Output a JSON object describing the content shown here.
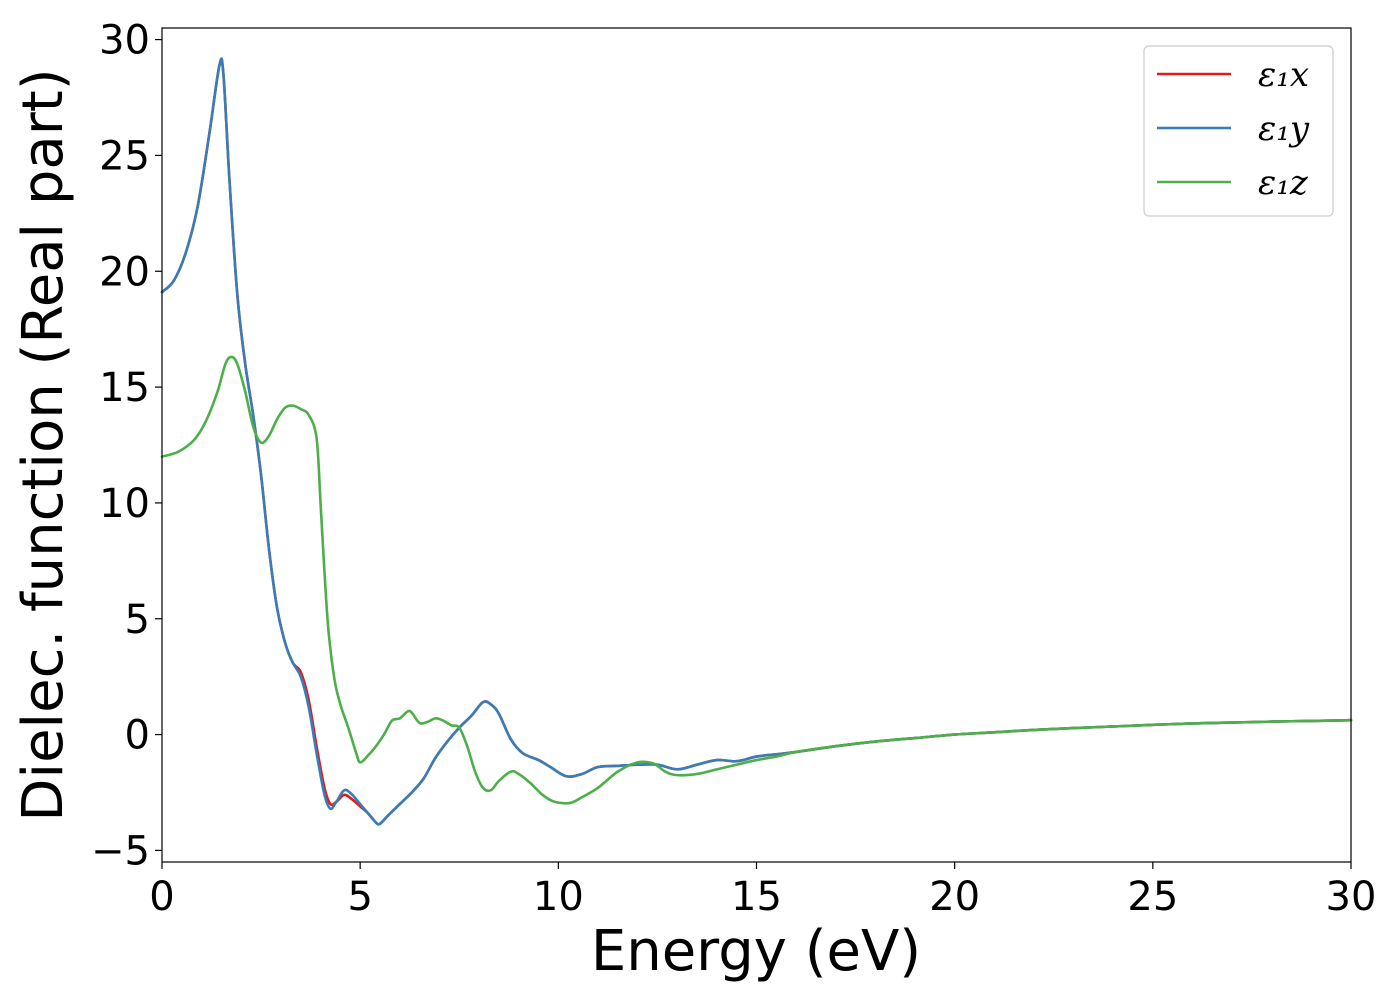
{
  "chart_data": {
    "type": "line",
    "title": "",
    "xlabel": "Energy (eV)",
    "ylabel": "Dielec. function (Real part)",
    "xlim": [
      0,
      30
    ],
    "ylim": [
      -5.5,
      30.5
    ],
    "xticks": [
      0,
      5,
      10,
      15,
      20,
      25,
      30
    ],
    "xtick_labels": [
      "0",
      "5",
      "10",
      "15",
      "20",
      "25",
      "30"
    ],
    "yticks": [
      -5,
      0,
      5,
      10,
      15,
      20,
      25,
      30
    ],
    "ytick_labels": [
      "−5",
      "0",
      "5",
      "10",
      "15",
      "20",
      "25",
      "30"
    ],
    "grid": false,
    "legend_position": "top-right",
    "series": [
      {
        "name": "ε₁x",
        "color": "#e41a1c",
        "points": [
          [
            0,
            19.1
          ],
          [
            0.3,
            19.6
          ],
          [
            0.6,
            20.8
          ],
          [
            0.9,
            22.8
          ],
          [
            1.2,
            26.0
          ],
          [
            1.45,
            28.9
          ],
          [
            1.55,
            28.5
          ],
          [
            1.7,
            24.0
          ],
          [
            1.9,
            19.0
          ],
          [
            2.1,
            16.0
          ],
          [
            2.3,
            13.8
          ],
          [
            2.5,
            11.2
          ],
          [
            2.7,
            8.0
          ],
          [
            2.9,
            5.5
          ],
          [
            3.1,
            4.0
          ],
          [
            3.3,
            3.1
          ],
          [
            3.5,
            2.7
          ],
          [
            3.7,
            1.5
          ],
          [
            3.9,
            -0.5
          ],
          [
            4.1,
            -2.3
          ],
          [
            4.25,
            -3.0
          ],
          [
            4.4,
            -2.9
          ],
          [
            4.6,
            -2.6
          ],
          [
            4.8,
            -2.8
          ],
          [
            5.0,
            -3.1
          ],
          [
            5.2,
            -3.4
          ],
          [
            5.4,
            -3.8
          ],
          [
            5.5,
            -3.85
          ],
          [
            5.7,
            -3.5
          ],
          [
            6.0,
            -3.0
          ],
          [
            6.3,
            -2.5
          ],
          [
            6.6,
            -1.9
          ],
          [
            6.9,
            -1.0
          ],
          [
            7.2,
            -0.3
          ],
          [
            7.5,
            0.3
          ],
          [
            7.8,
            0.8
          ],
          [
            8.1,
            1.4
          ],
          [
            8.3,
            1.3
          ],
          [
            8.5,
            0.9
          ],
          [
            8.8,
            -0.2
          ],
          [
            9.1,
            -0.8
          ],
          [
            9.5,
            -1.1
          ],
          [
            9.8,
            -1.4
          ],
          [
            10.2,
            -1.8
          ],
          [
            10.6,
            -1.7
          ],
          [
            11.0,
            -1.4
          ],
          [
            11.5,
            -1.35
          ],
          [
            12.0,
            -1.3
          ],
          [
            12.5,
            -1.3
          ],
          [
            13.0,
            -1.5
          ],
          [
            13.5,
            -1.3
          ],
          [
            14.0,
            -1.1
          ],
          [
            14.5,
            -1.15
          ],
          [
            15.0,
            -0.95
          ],
          [
            15.5,
            -0.85
          ],
          [
            16.0,
            -0.75
          ],
          [
            17.0,
            -0.5
          ],
          [
            18.0,
            -0.3
          ],
          [
            19.0,
            -0.15
          ],
          [
            20.0,
            0.0
          ],
          [
            21.0,
            0.1
          ],
          [
            22.0,
            0.2
          ],
          [
            23.0,
            0.28
          ],
          [
            24.0,
            0.35
          ],
          [
            25.0,
            0.42
          ],
          [
            26.0,
            0.48
          ],
          [
            27.0,
            0.52
          ],
          [
            28.0,
            0.56
          ],
          [
            29.0,
            0.59
          ],
          [
            30.0,
            0.62
          ]
        ]
      },
      {
        "name": "ε₁y",
        "color": "#377eb8",
        "points": [
          [
            0,
            19.1
          ],
          [
            0.3,
            19.6
          ],
          [
            0.6,
            20.8
          ],
          [
            0.9,
            22.8
          ],
          [
            1.2,
            26.0
          ],
          [
            1.45,
            28.9
          ],
          [
            1.55,
            28.5
          ],
          [
            1.7,
            24.0
          ],
          [
            1.9,
            19.0
          ],
          [
            2.1,
            16.0
          ],
          [
            2.3,
            13.8
          ],
          [
            2.5,
            11.2
          ],
          [
            2.7,
            8.0
          ],
          [
            2.9,
            5.5
          ],
          [
            3.1,
            4.0
          ],
          [
            3.3,
            3.1
          ],
          [
            3.5,
            2.5
          ],
          [
            3.7,
            1.2
          ],
          [
            3.9,
            -0.8
          ],
          [
            4.1,
            -2.6
          ],
          [
            4.25,
            -3.2
          ],
          [
            4.4,
            -2.9
          ],
          [
            4.6,
            -2.4
          ],
          [
            4.8,
            -2.6
          ],
          [
            5.0,
            -3.0
          ],
          [
            5.2,
            -3.4
          ],
          [
            5.4,
            -3.8
          ],
          [
            5.5,
            -3.85
          ],
          [
            5.7,
            -3.5
          ],
          [
            6.0,
            -3.0
          ],
          [
            6.3,
            -2.5
          ],
          [
            6.6,
            -1.9
          ],
          [
            6.9,
            -1.0
          ],
          [
            7.2,
            -0.3
          ],
          [
            7.5,
            0.3
          ],
          [
            7.8,
            0.8
          ],
          [
            8.1,
            1.4
          ],
          [
            8.3,
            1.3
          ],
          [
            8.5,
            0.9
          ],
          [
            8.8,
            -0.2
          ],
          [
            9.1,
            -0.8
          ],
          [
            9.5,
            -1.1
          ],
          [
            9.8,
            -1.4
          ],
          [
            10.2,
            -1.8
          ],
          [
            10.6,
            -1.7
          ],
          [
            11.0,
            -1.4
          ],
          [
            11.5,
            -1.35
          ],
          [
            12.0,
            -1.3
          ],
          [
            12.5,
            -1.3
          ],
          [
            13.0,
            -1.5
          ],
          [
            13.5,
            -1.3
          ],
          [
            14.0,
            -1.1
          ],
          [
            14.5,
            -1.15
          ],
          [
            15.0,
            -0.95
          ],
          [
            15.5,
            -0.85
          ],
          [
            16.0,
            -0.75
          ],
          [
            17.0,
            -0.5
          ],
          [
            18.0,
            -0.3
          ],
          [
            19.0,
            -0.15
          ],
          [
            20.0,
            0.0
          ],
          [
            21.0,
            0.1
          ],
          [
            22.0,
            0.2
          ],
          [
            23.0,
            0.28
          ],
          [
            24.0,
            0.35
          ],
          [
            25.0,
            0.42
          ],
          [
            26.0,
            0.48
          ],
          [
            27.0,
            0.52
          ],
          [
            28.0,
            0.56
          ],
          [
            29.0,
            0.59
          ],
          [
            30.0,
            0.62
          ]
        ]
      },
      {
        "name": "ε₁z",
        "color": "#4daf4a",
        "points": [
          [
            0,
            12.0
          ],
          [
            0.4,
            12.2
          ],
          [
            0.8,
            12.7
          ],
          [
            1.1,
            13.5
          ],
          [
            1.4,
            14.8
          ],
          [
            1.6,
            16.0
          ],
          [
            1.75,
            16.3
          ],
          [
            1.9,
            16.0
          ],
          [
            2.1,
            14.8
          ],
          [
            2.3,
            13.3
          ],
          [
            2.5,
            12.6
          ],
          [
            2.7,
            12.9
          ],
          [
            2.9,
            13.6
          ],
          [
            3.1,
            14.1
          ],
          [
            3.3,
            14.2
          ],
          [
            3.5,
            14.05
          ],
          [
            3.7,
            13.8
          ],
          [
            3.9,
            12.8
          ],
          [
            4.0,
            10.0
          ],
          [
            4.1,
            7.0
          ],
          [
            4.2,
            4.5
          ],
          [
            4.35,
            2.4
          ],
          [
            4.5,
            1.3
          ],
          [
            4.7,
            0.3
          ],
          [
            4.9,
            -0.8
          ],
          [
            5.0,
            -1.2
          ],
          [
            5.2,
            -0.9
          ],
          [
            5.4,
            -0.5
          ],
          [
            5.6,
            0.0
          ],
          [
            5.8,
            0.6
          ],
          [
            6.0,
            0.7
          ],
          [
            6.2,
            1.0
          ],
          [
            6.3,
            0.95
          ],
          [
            6.5,
            0.5
          ],
          [
            6.7,
            0.55
          ],
          [
            6.9,
            0.7
          ],
          [
            7.1,
            0.6
          ],
          [
            7.3,
            0.4
          ],
          [
            7.5,
            0.3
          ],
          [
            7.7,
            -0.5
          ],
          [
            7.9,
            -1.6
          ],
          [
            8.1,
            -2.3
          ],
          [
            8.3,
            -2.4
          ],
          [
            8.5,
            -2.0
          ],
          [
            8.8,
            -1.6
          ],
          [
            9.0,
            -1.7
          ],
          [
            9.3,
            -2.1
          ],
          [
            9.6,
            -2.6
          ],
          [
            9.9,
            -2.9
          ],
          [
            10.3,
            -2.95
          ],
          [
            10.6,
            -2.7
          ],
          [
            11.0,
            -2.3
          ],
          [
            11.5,
            -1.6
          ],
          [
            12.0,
            -1.2
          ],
          [
            12.4,
            -1.25
          ],
          [
            12.7,
            -1.6
          ],
          [
            13.0,
            -1.75
          ],
          [
            13.5,
            -1.7
          ],
          [
            14.0,
            -1.5
          ],
          [
            14.5,
            -1.3
          ],
          [
            15.0,
            -1.1
          ],
          [
            15.5,
            -0.95
          ],
          [
            16.0,
            -0.75
          ],
          [
            17.0,
            -0.5
          ],
          [
            18.0,
            -0.3
          ],
          [
            19.0,
            -0.15
          ],
          [
            20.0,
            0.0
          ],
          [
            21.0,
            0.1
          ],
          [
            22.0,
            0.2
          ],
          [
            23.0,
            0.28
          ],
          [
            24.0,
            0.35
          ],
          [
            25.0,
            0.42
          ],
          [
            26.0,
            0.48
          ],
          [
            27.0,
            0.52
          ],
          [
            28.0,
            0.56
          ],
          [
            29.0,
            0.59
          ],
          [
            30.0,
            0.62
          ]
        ]
      }
    ]
  }
}
